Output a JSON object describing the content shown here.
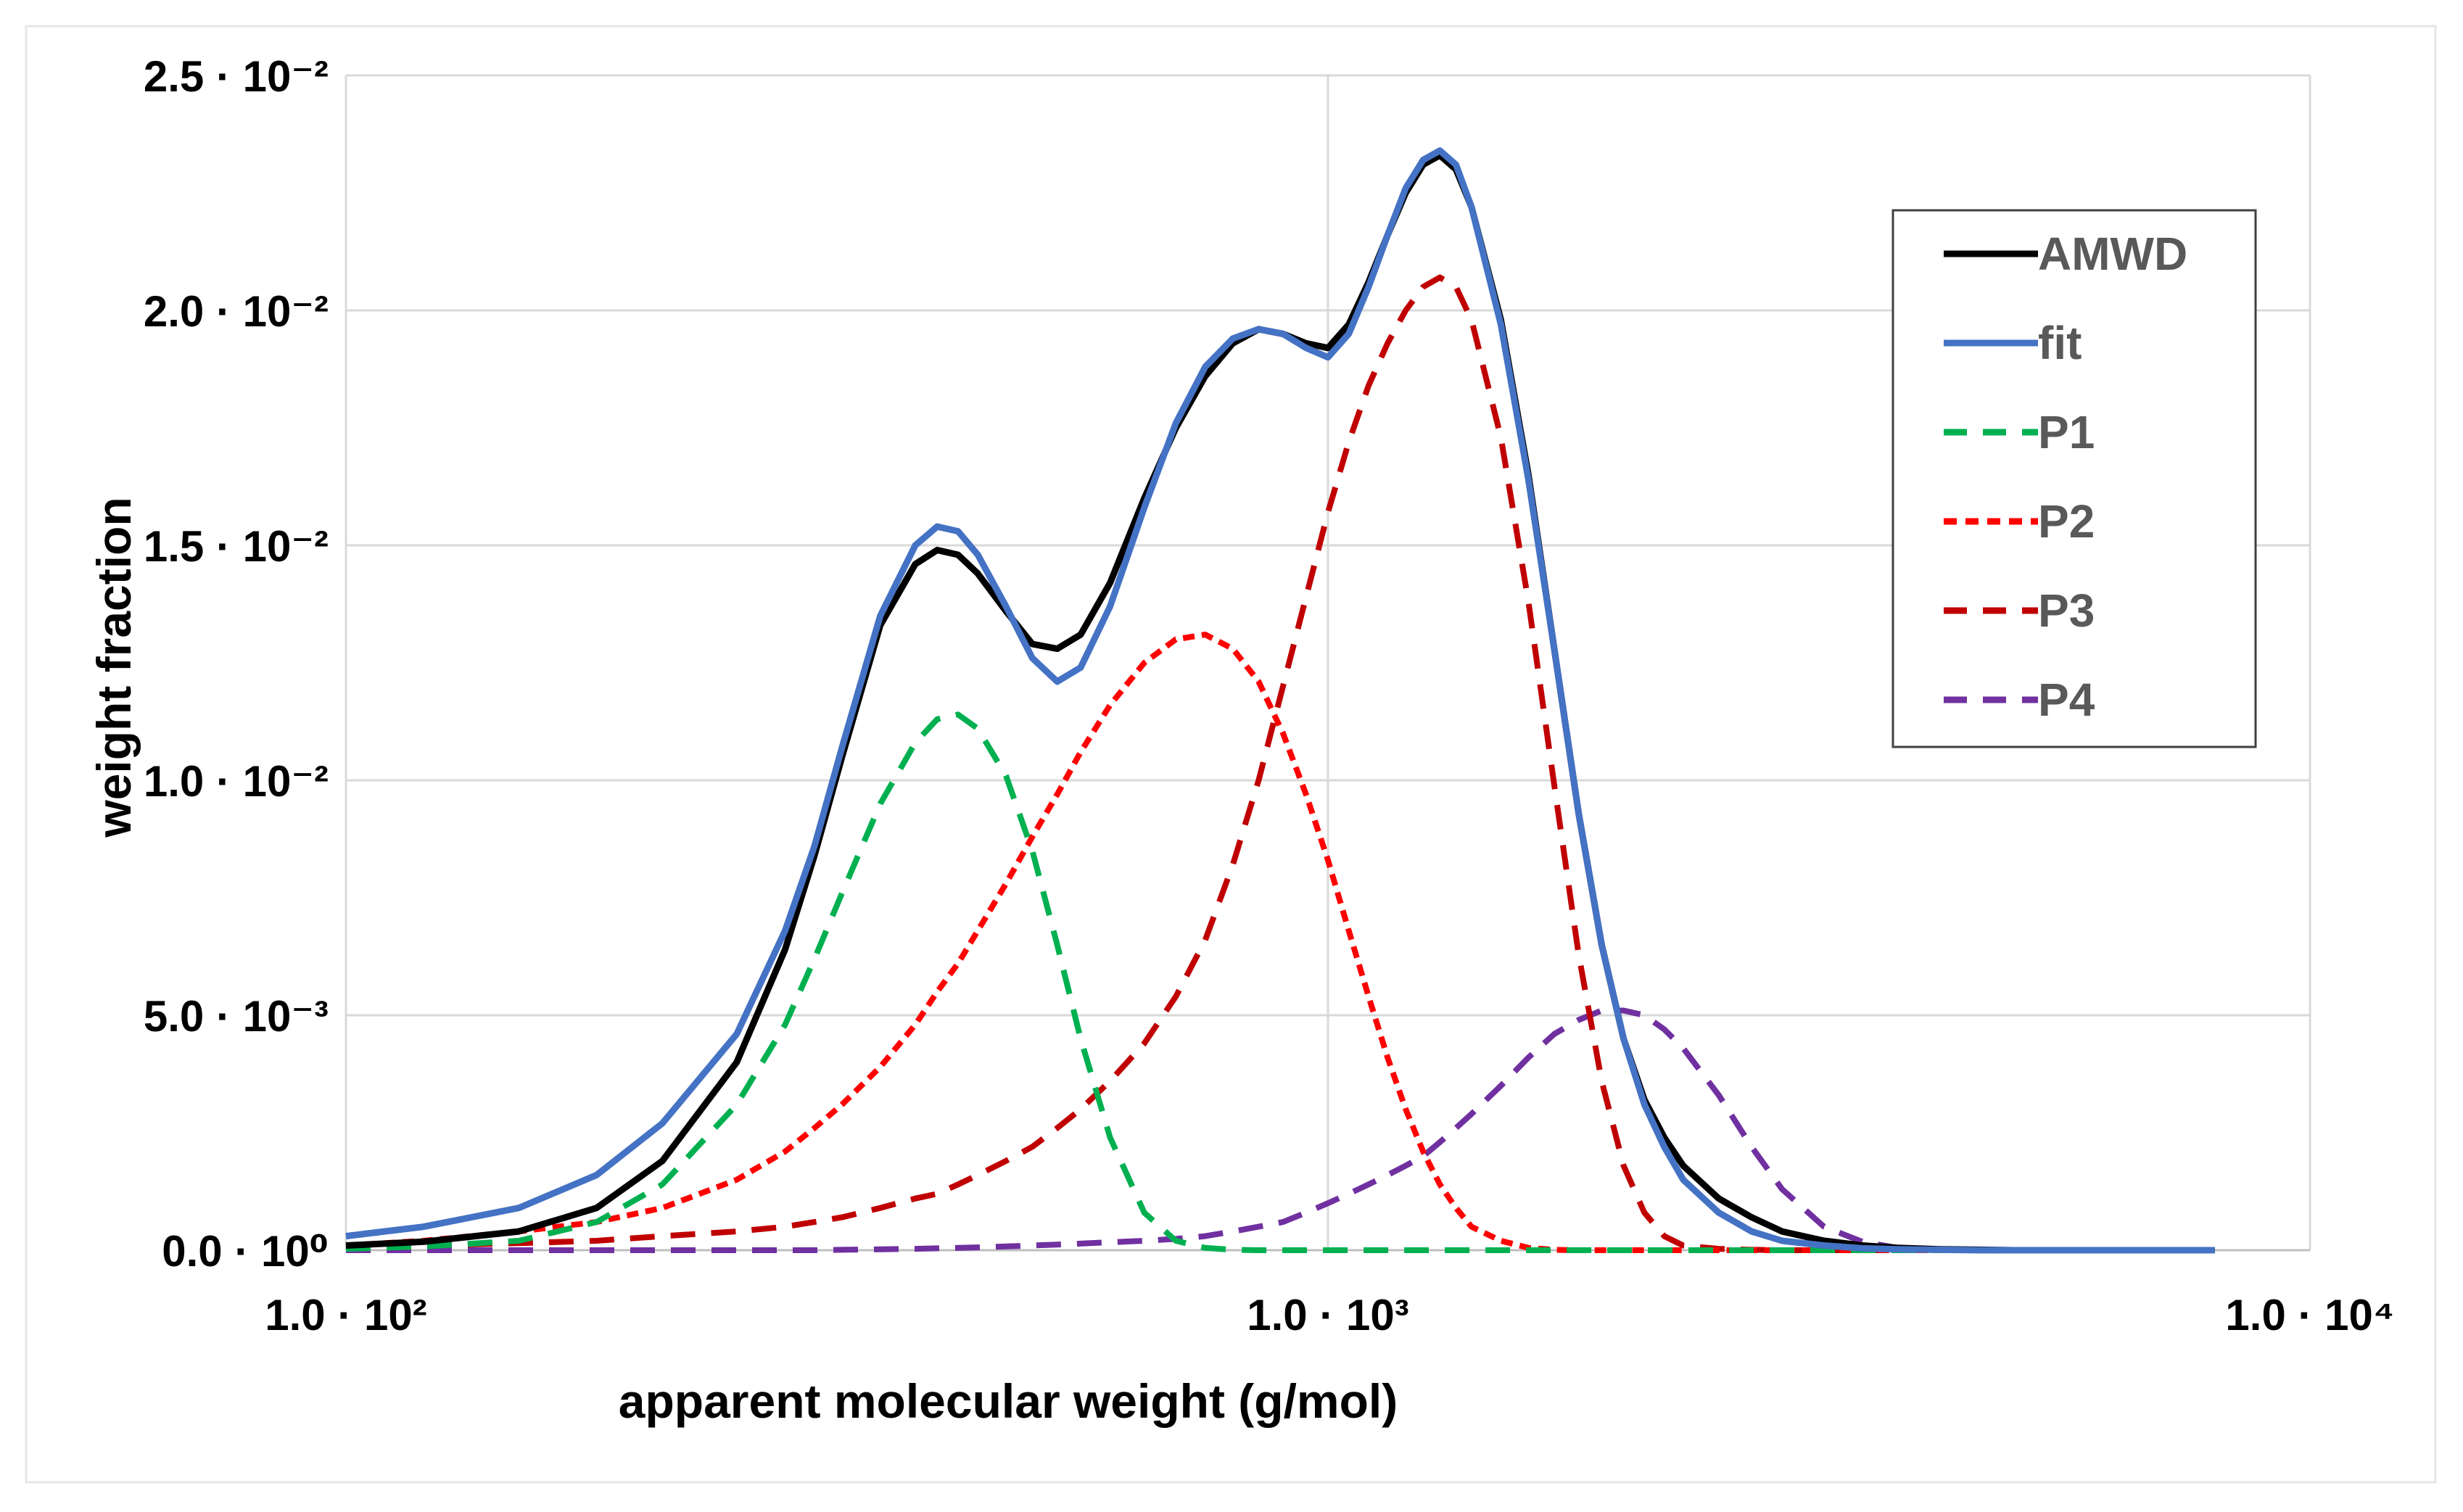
{
  "chart_data": {
    "type": "line",
    "x_scale": "log",
    "xlim": [
      100,
      10000
    ],
    "ylim": [
      0,
      0.025
    ],
    "xlabel": "apparent molecular weight (g/mol)",
    "ylabel": "weight fraction",
    "x_ticks": [
      {
        "value": 100,
        "label": "1.0 · 10²"
      },
      {
        "value": 1000,
        "label": "1.0 · 10³"
      },
      {
        "value": 10000,
        "label": "1.0 · 10⁴"
      }
    ],
    "y_ticks": [
      {
        "value": 0,
        "label": "0.0 · 10⁰"
      },
      {
        "value": 0.005,
        "label": "5.0 · 10⁻³"
      },
      {
        "value": 0.01,
        "label": "1.0 · 10⁻²"
      },
      {
        "value": 0.015,
        "label": "1.5 · 10⁻²"
      },
      {
        "value": 0.02,
        "label": "2.0 · 10⁻²"
      },
      {
        "value": 0.025,
        "label": "2.5 · 10⁻²"
      }
    ],
    "grid": true,
    "legend_position": "top-right",
    "x": [
      100,
      120,
      150,
      180,
      210,
      250,
      280,
      300,
      320,
      350,
      380,
      400,
      420,
      440,
      470,
      500,
      530,
      560,
      600,
      650,
      700,
      750,
      800,
      850,
      900,
      950,
      1000,
      1050,
      1100,
      1150,
      1200,
      1250,
      1300,
      1350,
      1400,
      1500,
      1600,
      1700,
      1800,
      1900,
      2000,
      2100,
      2200,
      2300,
      2500,
      2700,
      2900,
      3200,
      3500,
      3800,
      4200,
      4600,
      5000,
      5500,
      6000,
      6500,
      7000,
      7500,
      8000
    ],
    "series": [
      {
        "name": "AMWD",
        "color": "#000000",
        "dash": "solid",
        "values": [
          0.0001,
          0.00018,
          0.0004,
          0.0009,
          0.0019,
          0.004,
          0.0064,
          0.0084,
          0.0105,
          0.0133,
          0.0146,
          0.0149,
          0.0148,
          0.0144,
          0.0136,
          0.0129,
          0.0128,
          0.0131,
          0.0142,
          0.016,
          0.0175,
          0.0186,
          0.0193,
          0.0196,
          0.0195,
          0.0193,
          0.0192,
          0.0197,
          0.0206,
          0.0216,
          0.0225,
          0.0231,
          0.0233,
          0.023,
          0.0222,
          0.0198,
          0.0165,
          0.0128,
          0.0093,
          0.0065,
          0.0045,
          0.0032,
          0.0024,
          0.0018,
          0.0011,
          0.0007,
          0.0004,
          0.0002,
          0.0001,
          5e-05,
          2e-05,
          1e-05,
          0,
          0,
          0,
          0,
          0,
          0,
          0
        ]
      },
      {
        "name": "fit",
        "color": "#4472c4",
        "dash": "solid",
        "values": [
          0.0003,
          0.0005,
          0.0009,
          0.0016,
          0.0027,
          0.0046,
          0.0068,
          0.0086,
          0.0107,
          0.0135,
          0.015,
          0.0154,
          0.0153,
          0.0148,
          0.0137,
          0.0126,
          0.0121,
          0.0124,
          0.0137,
          0.0158,
          0.0176,
          0.0188,
          0.0194,
          0.0196,
          0.0195,
          0.0192,
          0.019,
          0.0195,
          0.0205,
          0.0216,
          0.0226,
          0.0232,
          0.0234,
          0.0231,
          0.0222,
          0.0197,
          0.0164,
          0.0128,
          0.0093,
          0.0065,
          0.0045,
          0.0031,
          0.0022,
          0.0015,
          0.0008,
          0.0004,
          0.0002,
          0.0001,
          4e-05,
          2e-05,
          1e-05,
          0,
          0,
          0,
          0,
          0,
          0,
          0,
          0
        ]
      },
      {
        "name": "P1",
        "color": "#00b050",
        "dash": "dash",
        "values": [
          3e-05,
          8e-05,
          0.0002,
          0.0006,
          0.0014,
          0.0031,
          0.0048,
          0.0062,
          0.0076,
          0.0095,
          0.0108,
          0.0113,
          0.0114,
          0.0111,
          0.0101,
          0.0085,
          0.0065,
          0.0045,
          0.0024,
          0.0008,
          0.0002,
          5e-05,
          1e-05,
          0,
          0,
          0,
          0,
          0,
          0,
          0,
          0,
          0,
          0,
          0,
          0,
          0,
          0,
          0,
          0,
          0,
          0,
          0,
          0,
          0,
          0,
          0,
          0,
          0,
          0,
          0,
          0,
          0,
          0,
          0,
          0,
          0,
          0,
          0,
          0
        ]
      },
      {
        "name": "P2",
        "color": "#ff0000",
        "dash": "dot",
        "values": [
          0.0001,
          0.0002,
          0.0004,
          0.0006,
          0.0009,
          0.0015,
          0.0021,
          0.0026,
          0.0031,
          0.0039,
          0.0048,
          0.0055,
          0.0061,
          0.0068,
          0.0078,
          0.0088,
          0.0097,
          0.0106,
          0.0116,
          0.0125,
          0.013,
          0.0131,
          0.0128,
          0.0121,
          0.011,
          0.0097,
          0.0083,
          0.0068,
          0.0054,
          0.0041,
          0.003,
          0.0021,
          0.0014,
          0.0009,
          0.0005,
          0.0002,
          5e-05,
          1e-05,
          0,
          0,
          0,
          0,
          0,
          0,
          0,
          0,
          0,
          0,
          0,
          0,
          0,
          0,
          0,
          0,
          0,
          0,
          0,
          0,
          0
        ]
      },
      {
        "name": "P3",
        "color": "#c00000",
        "dash": "dash",
        "values": [
          5e-05,
          0.0001,
          0.00015,
          0.0002,
          0.0003,
          0.0004,
          0.0005,
          0.0006,
          0.0007,
          0.0009,
          0.0011,
          0.0012,
          0.0014,
          0.0016,
          0.0019,
          0.0022,
          0.0026,
          0.003,
          0.0036,
          0.0044,
          0.0054,
          0.0066,
          0.0082,
          0.01,
          0.012,
          0.0139,
          0.0157,
          0.0172,
          0.0184,
          0.0193,
          0.02,
          0.0205,
          0.0207,
          0.0205,
          0.0198,
          0.0173,
          0.0138,
          0.0099,
          0.0063,
          0.0036,
          0.0018,
          0.0008,
          0.0003,
          0.0001,
          3e-05,
          1e-05,
          0,
          0,
          0,
          0,
          0,
          0,
          0,
          0,
          0,
          0,
          0,
          0,
          0
        ]
      },
      {
        "name": "P4",
        "color": "#7030a0",
        "dash": "dash",
        "values": [
          0,
          0,
          0,
          0,
          0,
          0,
          0,
          0,
          1e-05,
          2e-05,
          3e-05,
          4e-05,
          5e-05,
          6e-05,
          8e-05,
          0.0001,
          0.00012,
          0.00014,
          0.00017,
          0.0002,
          0.00024,
          0.0003,
          0.0004,
          0.0005,
          0.0006,
          0.0008,
          0.001,
          0.0012,
          0.0014,
          0.0016,
          0.0018,
          0.002,
          0.0023,
          0.0026,
          0.0029,
          0.0035,
          0.0041,
          0.0046,
          0.0049,
          0.0051,
          0.0051,
          0.005,
          0.0047,
          0.0043,
          0.0033,
          0.0022,
          0.0013,
          0.0005,
          0.00018,
          5e-05,
          1e-05,
          0,
          0,
          0,
          0,
          0,
          0,
          0,
          0
        ]
      }
    ]
  }
}
